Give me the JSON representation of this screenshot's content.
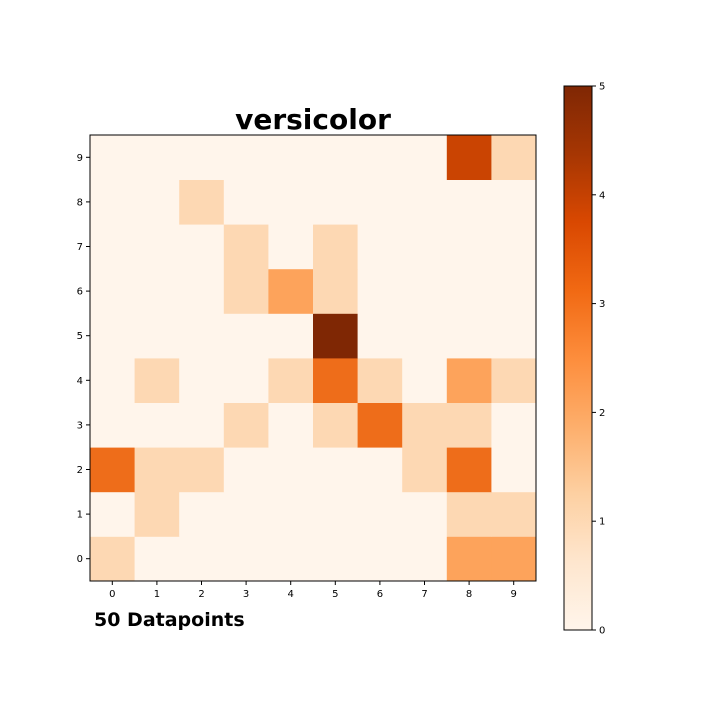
{
  "chart_data": {
    "type": "heatmap",
    "title": "versicolor",
    "annotation": "50 Datapoints",
    "xlabel": "",
    "ylabel": "",
    "x_categories": [
      "0",
      "1",
      "2",
      "3",
      "4",
      "5",
      "6",
      "7",
      "8",
      "9"
    ],
    "y_categories": [
      "0",
      "1",
      "2",
      "3",
      "4",
      "5",
      "6",
      "7",
      "8",
      "9"
    ],
    "values": [
      [
        1,
        0,
        0,
        0,
        0,
        0,
        0,
        0,
        2,
        2
      ],
      [
        0,
        1,
        0,
        0,
        0,
        0,
        0,
        0,
        1,
        1
      ],
      [
        3,
        1,
        1,
        0,
        0,
        0,
        0,
        1,
        3,
        0
      ],
      [
        0,
        0,
        0,
        1,
        0,
        1,
        3,
        1,
        1,
        0
      ],
      [
        0,
        1,
        0,
        0,
        1,
        3,
        1,
        0,
        2,
        1
      ],
      [
        0,
        0,
        0,
        0,
        0,
        5,
        0,
        0,
        0,
        0
      ],
      [
        0,
        0,
        0,
        1,
        2,
        1,
        0,
        0,
        0,
        0
      ],
      [
        0,
        0,
        0,
        1,
        0,
        1,
        0,
        0,
        0,
        0
      ],
      [
        0,
        0,
        1,
        0,
        0,
        0,
        0,
        0,
        0,
        0
      ],
      [
        0,
        0,
        0,
        0,
        0,
        0,
        0,
        0,
        4,
        1
      ]
    ],
    "colormap": "Oranges",
    "colorbar": {
      "range": [
        0,
        5
      ],
      "ticks": [
        "0",
        "1",
        "2",
        "3",
        "4",
        "5"
      ]
    },
    "colors": [
      "#fff5eb",
      "#fdd8b3",
      "#fda35b",
      "#ee6d1a",
      "#ca4402",
      "#7f2704"
    ],
    "grid": false
  }
}
